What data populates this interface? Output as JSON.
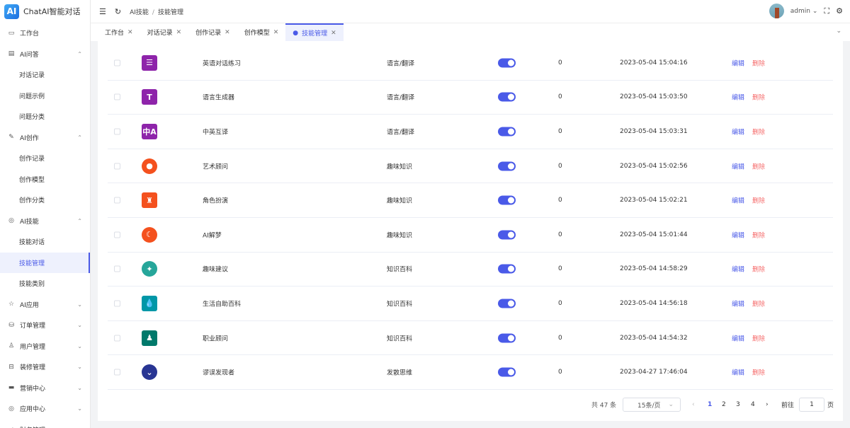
{
  "app": {
    "logo": "AI",
    "title": "ChatAI智能对话"
  },
  "sidebar": {
    "items": [
      {
        "label": "工作台",
        "icon": "monitor-icon",
        "glyph": "▭",
        "level": 0
      },
      {
        "label": "AI问答",
        "icon": "message-icon",
        "glyph": "▤",
        "level": 0,
        "chev": "⌃"
      },
      {
        "label": "对话记录",
        "level": 1
      },
      {
        "label": "问题示例",
        "level": 1
      },
      {
        "label": "问题分类",
        "level": 1
      },
      {
        "label": "AI创作",
        "icon": "pen-icon",
        "glyph": "✎",
        "level": 0,
        "chev": "⌃"
      },
      {
        "label": "创作记录",
        "level": 1
      },
      {
        "label": "创作模型",
        "level": 1
      },
      {
        "label": "创作分类",
        "level": 1
      },
      {
        "label": "AI技能",
        "icon": "compass-icon",
        "glyph": "◎",
        "level": 0,
        "chev": "⌃"
      },
      {
        "label": "技能对话",
        "level": 1
      },
      {
        "label": "技能管理",
        "level": 1,
        "active": true
      },
      {
        "label": "技能类别",
        "level": 1
      },
      {
        "label": "AI应用",
        "icon": "star-icon",
        "glyph": "☆",
        "level": 0,
        "chev": "⌄"
      },
      {
        "label": "订单管理",
        "icon": "database-icon",
        "glyph": "⛁",
        "level": 0,
        "chev": "⌄"
      },
      {
        "label": "用户管理",
        "icon": "user-icon",
        "glyph": "♙",
        "level": 0,
        "chev": "⌄"
      },
      {
        "label": "装修管理",
        "icon": "paint-icon",
        "glyph": "⊟",
        "level": 0,
        "chev": "⌄"
      },
      {
        "label": "营销中心",
        "icon": "briefcase-icon",
        "glyph": "▬",
        "level": 0,
        "chev": "⌄"
      },
      {
        "label": "应用中心",
        "icon": "apps-icon",
        "glyph": "◎",
        "level": 0,
        "chev": "⌄"
      },
      {
        "label": "财务管理",
        "icon": "chart-icon",
        "glyph": "⩘",
        "level": 0,
        "chev": "⌄"
      }
    ]
  },
  "header": {
    "breadcrumb": [
      "AI技能",
      "技能管理"
    ],
    "user": "admin"
  },
  "tabs": [
    {
      "label": "工作台"
    },
    {
      "label": "对话记录"
    },
    {
      "label": "创作记录"
    },
    {
      "label": "创作模型"
    },
    {
      "label": "技能管理",
      "active": true
    }
  ],
  "table": {
    "rows": [
      {
        "icon": "chat-bubbles-icon",
        "glyph": "☰",
        "color": "#8e24aa",
        "name": "英语对话练习",
        "category": "语言/翻译",
        "enabled": true,
        "count": "0",
        "time": "2023-05-04 15:04:16"
      },
      {
        "icon": "text-board-icon",
        "glyph": "T",
        "color": "#8e24aa",
        "name": "语言生成器",
        "category": "语言/翻译",
        "enabled": true,
        "count": "0",
        "time": "2023-05-04 15:03:50"
      },
      {
        "icon": "translate-icon",
        "glyph": "中A",
        "color": "#8e24aa",
        "name": "中英互译",
        "category": "语言/翻译",
        "enabled": true,
        "count": "0",
        "time": "2023-05-04 15:03:31"
      },
      {
        "icon": "palette-icon",
        "glyph": "●",
        "color": "#f4511e",
        "name": "艺术顾问",
        "category": "趣味知识",
        "enabled": true,
        "count": "0",
        "time": "2023-05-04 15:02:56"
      },
      {
        "icon": "detective-icon",
        "glyph": "♜",
        "color": "#f4511e",
        "name": "角色扮演",
        "category": "趣味知识",
        "enabled": true,
        "count": "0",
        "time": "2023-05-04 15:02:21"
      },
      {
        "icon": "moon-sleep-icon",
        "glyph": "☾",
        "color": "#f4511e",
        "name": "AI解梦",
        "category": "趣味知识",
        "enabled": true,
        "count": "0",
        "time": "2023-05-04 15:01:44"
      },
      {
        "icon": "sparkle-smile-icon",
        "glyph": "✦",
        "color": "#26a69a",
        "name": "趣味建议",
        "category": "知识百科",
        "enabled": true,
        "count": "0",
        "time": "2023-05-04 14:58:29"
      },
      {
        "icon": "water-drop-icon",
        "glyph": "💧",
        "color": "#0097a7",
        "name": "生活自助百科",
        "category": "知识百科",
        "enabled": true,
        "count": "0",
        "time": "2023-05-04 14:56:18"
      },
      {
        "icon": "advisor-icon",
        "glyph": "♟",
        "color": "#00796b",
        "name": "职业顾问",
        "category": "知识百科",
        "enabled": true,
        "count": "0",
        "time": "2023-05-04 14:54:32"
      },
      {
        "icon": "bulb-icon",
        "glyph": "⌄",
        "color": "#283593",
        "name": "谬误发现者",
        "category": "发散思维",
        "enabled": true,
        "count": "0",
        "time": "2023-04-27 17:46:04"
      }
    ],
    "edit_label": "编辑",
    "delete_label": "删除"
  },
  "pagination": {
    "total": "共 47 条",
    "page_size": "15条/页",
    "pages": [
      "1",
      "2",
      "3",
      "4"
    ],
    "current": "1",
    "goto_label": "前往",
    "goto_value": "1",
    "page_suffix": "页"
  },
  "colors": {
    "accent": "#4a5ae8",
    "danger": "#f56c6c"
  }
}
